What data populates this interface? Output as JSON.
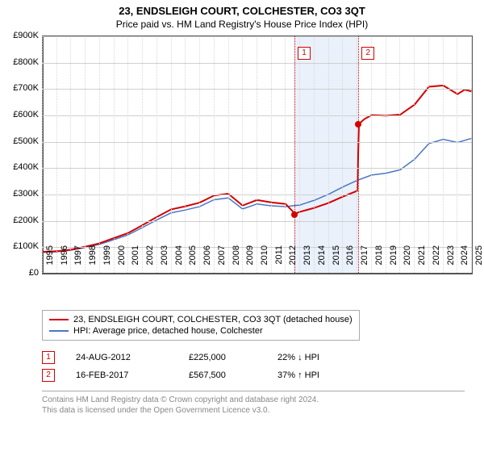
{
  "title": "23, ENDSLEIGH COURT, COLCHESTER, CO3 3QT",
  "subtitle": "Price paid vs. HM Land Registry's House Price Index (HPI)",
  "chart": {
    "type": "line",
    "background_color": "#ffffff",
    "grid_color": "#d0d0d0",
    "axis_color": "#555555",
    "shaded_band_color": "#eaf1fb",
    "ylim": [
      0,
      900000
    ],
    "ytick_step": 100000,
    "yticks": [
      "£0",
      "£100K",
      "£200K",
      "£300K",
      "£400K",
      "£500K",
      "£600K",
      "£700K",
      "£800K",
      "£900K"
    ],
    "xlim": [
      1995,
      2025
    ],
    "xticks": [
      "1995",
      "1996",
      "1997",
      "1998",
      "1999",
      "2000",
      "2001",
      "2002",
      "2003",
      "2004",
      "2005",
      "2006",
      "2007",
      "2008",
      "2009",
      "2010",
      "2011",
      "2012",
      "2013",
      "2014",
      "2015",
      "2016",
      "2017",
      "2018",
      "2019",
      "2020",
      "2021",
      "2022",
      "2023",
      "2024",
      "2025"
    ],
    "series": [
      {
        "name": "23, ENDSLEIGH COURT, COLCHESTER, CO3 3QT (detached house)",
        "color": "#d40000",
        "line_width": 2,
        "steps": [
          {
            "from_year": 1995,
            "to_year": 2012.65,
            "start_val": 80000,
            "end_val": 225000
          },
          {
            "from_year": 2012.65,
            "to_year": 2017.12,
            "start_val": 225000,
            "end_val": 567500
          }
        ],
        "data": [
          [
            1995,
            80000
          ],
          [
            1996,
            82000
          ],
          [
            1997,
            88000
          ],
          [
            1998,
            99000
          ],
          [
            1999,
            112000
          ],
          [
            2000,
            132000
          ],
          [
            2001,
            151000
          ],
          [
            2002,
            181000
          ],
          [
            2003,
            212000
          ],
          [
            2004,
            241000
          ],
          [
            2005,
            253000
          ],
          [
            2006,
            267000
          ],
          [
            2007,
            294000
          ],
          [
            2008,
            301000
          ],
          [
            2009,
            256000
          ],
          [
            2010,
            277000
          ],
          [
            2011,
            268000
          ],
          [
            2012,
            262000
          ],
          [
            2012.65,
            225000
          ],
          [
            2012.66,
            225000
          ],
          [
            2013,
            232000
          ],
          [
            2014,
            247000
          ],
          [
            2015,
            266000
          ],
          [
            2016,
            290000
          ],
          [
            2017,
            312000
          ],
          [
            2017.12,
            567500
          ],
          [
            2017.13,
            567500
          ],
          [
            2017.5,
            585000
          ],
          [
            2018,
            600000
          ],
          [
            2019,
            598000
          ],
          [
            2020,
            602000
          ],
          [
            2021,
            640000
          ],
          [
            2022,
            708000
          ],
          [
            2023,
            713000
          ],
          [
            2024,
            680000
          ],
          [
            2024.5,
            697000
          ],
          [
            2025,
            690000
          ]
        ]
      },
      {
        "name": "HPI: Average price, detached house, Colchester",
        "color": "#4a77c4",
        "line_width": 1.5,
        "data": [
          [
            1995,
            78000
          ],
          [
            1996,
            80000
          ],
          [
            1997,
            86000
          ],
          [
            1998,
            96000
          ],
          [
            1999,
            108000
          ],
          [
            2000,
            126000
          ],
          [
            2001,
            144000
          ],
          [
            2002,
            172000
          ],
          [
            2003,
            201000
          ],
          [
            2004,
            228000
          ],
          [
            2005,
            239000
          ],
          [
            2006,
            252000
          ],
          [
            2007,
            278000
          ],
          [
            2008,
            285000
          ],
          [
            2009,
            243000
          ],
          [
            2010,
            262000
          ],
          [
            2011,
            255000
          ],
          [
            2012,
            252000
          ],
          [
            2013,
            258000
          ],
          [
            2014,
            276000
          ],
          [
            2015,
            299000
          ],
          [
            2016,
            327000
          ],
          [
            2017,
            352000
          ],
          [
            2018,
            372000
          ],
          [
            2019,
            379000
          ],
          [
            2020,
            392000
          ],
          [
            2021,
            432000
          ],
          [
            2022,
            492000
          ],
          [
            2023,
            508000
          ],
          [
            2024,
            496000
          ],
          [
            2025,
            512000
          ]
        ]
      }
    ],
    "markers": [
      {
        "n": "1",
        "year": 2012.65,
        "price": 225000,
        "color": "#d40000"
      },
      {
        "n": "2",
        "year": 2017.12,
        "price": 567500,
        "color": "#d40000"
      }
    ],
    "shaded_band": {
      "from_year": 2012.65,
      "to_year": 2017.12
    }
  },
  "legend": {
    "items": [
      {
        "color": "#d40000",
        "label": "23, ENDSLEIGH COURT, COLCHESTER, CO3 3QT (detached house)"
      },
      {
        "color": "#4a77c4",
        "label": "HPI: Average price, detached house, Colchester"
      }
    ]
  },
  "transactions": [
    {
      "n": "1",
      "color": "#d40000",
      "date": "24-AUG-2012",
      "price": "£225,000",
      "pct": "22% ↓ HPI"
    },
    {
      "n": "2",
      "color": "#d40000",
      "date": "16-FEB-2017",
      "price": "£567,500",
      "pct": "37% ↑ HPI"
    }
  ],
  "footer": {
    "line1": "Contains HM Land Registry data © Crown copyright and database right 2024.",
    "line2": "This data is licensed under the Open Government Licence v3.0."
  }
}
